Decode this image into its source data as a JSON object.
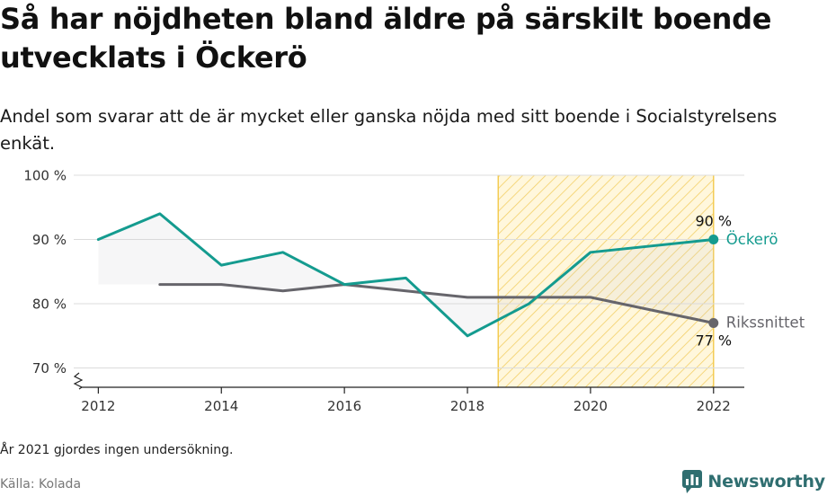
{
  "header": {
    "title": "Så har nöjdheten bland äldre på särskilt boende utvecklats i Öckerö",
    "subtitle": "Andel som svarar att de är mycket eller ganska nöjda med sitt boende i Socialstyrelsens enkät."
  },
  "footer": {
    "note": "År 2021 gjordes ingen undersökning.",
    "source": "Källa: Kolada",
    "brand": "Newsworthy"
  },
  "colors": {
    "ockero": "#149b8f",
    "riks": "#66656b",
    "highlight": "#f5c542",
    "logo": "#2f6e70"
  },
  "chart_data": {
    "type": "line",
    "y_tick_labels": [
      "100 %",
      "90 %",
      "80 %",
      "70 %"
    ],
    "y_ticks": [
      100,
      90,
      80,
      70
    ],
    "x_tick_labels": [
      "2012",
      "2014",
      "2016",
      "2018",
      "2020",
      "2022"
    ],
    "x_ticks": [
      2012,
      2014,
      2016,
      2018,
      2020,
      2022
    ],
    "xlim": [
      2011.6,
      2022.5
    ],
    "ylim": [
      67,
      100
    ],
    "axis_break": true,
    "highlight_range": [
      2018.5,
      2022
    ],
    "series": [
      {
        "name": "Öckerö",
        "color": "#149b8f",
        "x": [
          2012,
          2013,
          2014,
          2015,
          2016,
          2017,
          2018,
          2019,
          2020,
          2022
        ],
        "y": [
          90,
          94,
          86,
          88,
          83,
          84,
          75,
          80,
          88,
          90
        ],
        "end_label": "90 %"
      },
      {
        "name": "Rikssnittet",
        "color": "#66656b",
        "x": [
          2013,
          2014,
          2015,
          2016,
          2017,
          2018,
          2019,
          2020,
          2022
        ],
        "y": [
          83,
          83,
          82,
          83,
          82,
          81,
          81,
          81,
          77
        ],
        "end_label": "77 %"
      }
    ]
  }
}
